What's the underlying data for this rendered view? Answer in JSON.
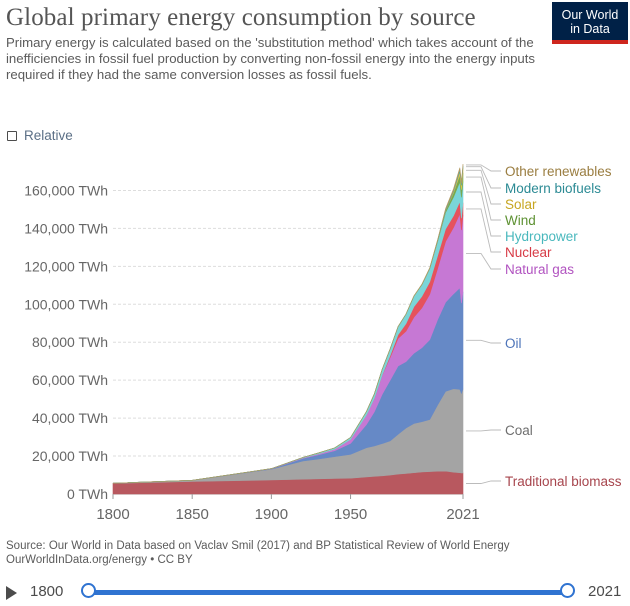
{
  "header": {
    "title": "Global primary energy consumption by source",
    "subtitle": "Primary energy is calculated based on the 'substitution method' which takes account of the inefficiencies in fossil fuel production by converting non-fossil energy into the energy inputs required if they had the same conversion losses as fossil fuels.",
    "logo_line1": "Our World",
    "logo_line2": "in Data"
  },
  "controls": {
    "relative_label": "Relative"
  },
  "chart_data": {
    "type": "area",
    "stacked": true,
    "title": "Global primary energy consumption by source",
    "x": [
      1800,
      1850,
      1900,
      1920,
      1930,
      1940,
      1950,
      1960,
      1965,
      1970,
      1975,
      1980,
      1985,
      1990,
      1995,
      2000,
      2005,
      2010,
      2015,
      2019,
      2020,
      2021
    ],
    "x_ticks": [
      1800,
      1850,
      1900,
      1950,
      2021
    ],
    "ylim": [
      0,
      175000
    ],
    "y_ticks": [
      0,
      20000,
      40000,
      60000,
      80000,
      100000,
      120000,
      140000,
      160000
    ],
    "y_tick_labels": [
      "0 TWh",
      "20,000 TWh",
      "40,000 TWh",
      "60,000 TWh",
      "80,000 TWh",
      "100,000 TWh",
      "120,000 TWh",
      "140,000 TWh",
      "160,000 TWh"
    ],
    "series": [
      {
        "name": "Traditional biomass",
        "color": "#b8585f",
        "values": [
          5600,
          6600,
          7400,
          7800,
          8000,
          8200,
          8300,
          9000,
          9300,
          9600,
          10000,
          10500,
          10800,
          11200,
          11600,
          11800,
          12000,
          12100,
          11500,
          11200,
          11100,
          11100
        ]
      },
      {
        "name": "Coal",
        "color": "#a4a4a4",
        "values": [
          100,
          600,
          5700,
          9600,
          10500,
          11500,
          12600,
          15400,
          16000,
          17000,
          18000,
          21000,
          24000,
          26000,
          26500,
          27500,
          35000,
          42000,
          44000,
          44000,
          42000,
          44300
        ]
      },
      {
        "name": "Oil",
        "color": "#6689c6",
        "values": [
          0,
          0,
          200,
          1400,
          2200,
          3100,
          5800,
          12200,
          18000,
          26000,
          32000,
          36000,
          35000,
          37000,
          39000,
          42000,
          45000,
          47000,
          50000,
          53500,
          47500,
          51200
        ]
      },
      {
        "name": "Natural gas",
        "color": "#c678d4",
        "values": [
          0,
          0,
          70,
          250,
          500,
          800,
          2100,
          5000,
          7000,
          10000,
          12000,
          14500,
          16000,
          19000,
          21000,
          24000,
          27000,
          32000,
          35000,
          39000,
          38500,
          40400
        ]
      },
      {
        "name": "Nuclear",
        "color": "#e5525d",
        "values": [
          0,
          0,
          0,
          0,
          0,
          0,
          0,
          0,
          100,
          200,
          1000,
          2000,
          4000,
          5500,
          6000,
          6500,
          6700,
          6600,
          6200,
          6500,
          6300,
          6600
        ]
      },
      {
        "name": "Hydropower",
        "color": "#7ad5d8",
        "values": [
          0,
          0,
          20,
          250,
          500,
          700,
          1000,
          1800,
          2300,
          3000,
          3500,
          4200,
          5000,
          5600,
          6200,
          7000,
          7500,
          8700,
          9800,
          10400,
          11000,
          11200
        ]
      },
      {
        "name": "Wind",
        "color": "#78a84f",
        "values": [
          0,
          0,
          0,
          0,
          0,
          0,
          0,
          0,
          0,
          0,
          0,
          0,
          0,
          10,
          20,
          80,
          270,
          880,
          2200,
          3600,
          4000,
          4500
        ]
      },
      {
        "name": "Solar",
        "color": "#e1c44b",
        "values": [
          0,
          0,
          0,
          0,
          0,
          0,
          0,
          0,
          0,
          0,
          0,
          0,
          0,
          0,
          0,
          5,
          20,
          90,
          650,
          1900,
          2300,
          2700
        ]
      },
      {
        "name": "Modern biofuels",
        "color": "#3fa7b2",
        "values": [
          0,
          0,
          0,
          0,
          0,
          0,
          0,
          0,
          0,
          0,
          0,
          0,
          0,
          0,
          0,
          100,
          300,
          500,
          700,
          1000,
          950,
          1000
        ]
      },
      {
        "name": "Other renewables",
        "color": "#b39a62",
        "values": [
          0,
          0,
          0,
          0,
          0,
          0,
          0,
          0,
          0,
          0,
          0,
          0,
          0,
          100,
          200,
          300,
          400,
          600,
          800,
          900,
          930,
          950
        ]
      }
    ],
    "legend_label_colors": {
      "Other renewables": "#9a7d40",
      "Modern biofuels": "#2b8a94",
      "Solar": "#c7a620",
      "Wind": "#5d9132",
      "Hydropower": "#49b8bd",
      "Nuclear": "#d73a45",
      "Natural gas": "#b153c0",
      "Oil": "#4d74b9",
      "Coal": "#6e6e6e",
      "Traditional biomass": "#a7454d"
    }
  },
  "source": {
    "line1": "Source: Our World in Data based on Vaclav Smil (2017) and BP Statistical Review of World Energy",
    "line2": "OurWorldInData.org/energy • CC BY"
  },
  "timeline": {
    "start_year": "1800",
    "end_year": "2021"
  }
}
